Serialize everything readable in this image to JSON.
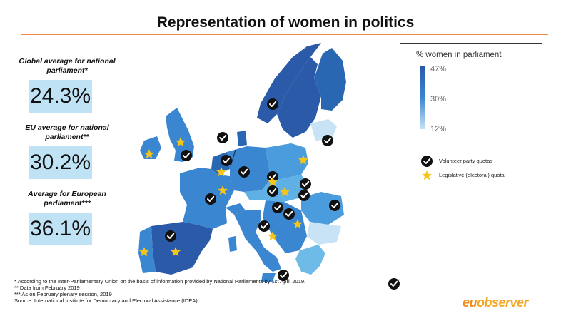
{
  "title": "Representation of women in politics",
  "stats": [
    {
      "label": "Global average for national parliament*",
      "value": "24.3%"
    },
    {
      "label": "EU average for national parliament**",
      "value": "30.2%"
    },
    {
      "label": "Average for European parliament***",
      "value": "36.1%"
    }
  ],
  "legend": {
    "title": "% women in parliament",
    "max": "47%",
    "mid": "30%",
    "min": "12%",
    "check_label": "Volunteer party quotas",
    "star_label": "Legislative (electoral) quota"
  },
  "colors": {
    "accent_line": "#f08a4b",
    "dark": "#2a5aa8",
    "mid": "#3a86d0",
    "light": "#c7e3f5",
    "star": "#f5c518",
    "logo": "#f08a1b"
  },
  "footnotes": [
    "* According to the Inter-Parliamentary Union on the basis of information provided by National Parliaments by 1st April 2019.",
    "** Data from February 2019",
    "*** As on February plenary session, 2019",
    "Source: International Institute for Democracy and Electoral Assistance (IDEA)"
  ],
  "logo": {
    "part1": "eu",
    "part2": "observer"
  }
}
